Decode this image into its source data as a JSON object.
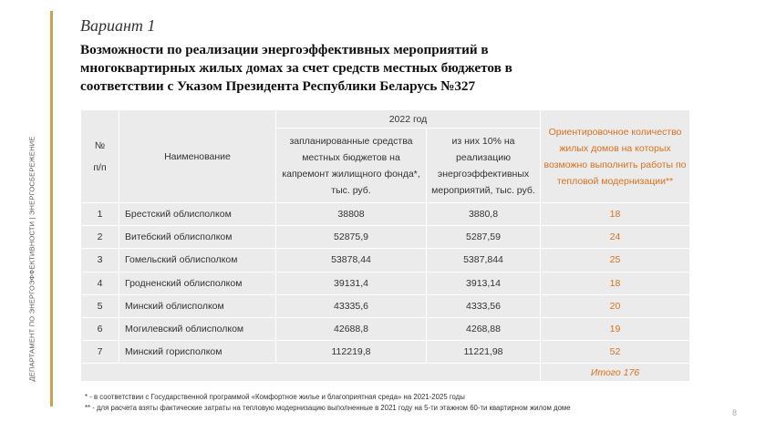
{
  "side_label": "ДЕПАРТАМЕНТ ПО ЭНЕРГОЭФФЕКТИВНОСТИ | ЭНЕРГОСБЕРЕЖЕНИЕ",
  "variant": "Вариант 1",
  "title_lines": [
    "Возможности по реализации энергоэффективных мероприятий в",
    "многоквартирных жилых домах за счет средств местных бюджетов в",
    "соответствии с Указом Президента Республики Беларусь №327"
  ],
  "table": {
    "header": {
      "num": "№ п/п",
      "name": "Наименование",
      "year": "2022 год",
      "planned": "запланированные средства местных бюджетов на капремонт жилищного фонда*, тыс. руб.",
      "ten_percent": "из них 10% на реализацию энергоэффективных мероприятий, тыс. руб.",
      "estimate": "Ориентировочное количество жилых домов на которых возможно выполнить работы по тепловой модернизации**"
    },
    "rows": [
      {
        "num": "1",
        "name": "Брестский облисполком",
        "planned": "38808",
        "ten": "3880,8",
        "houses": "18"
      },
      {
        "num": "2",
        "name": "Витебский облисполком",
        "planned": "52875,9",
        "ten": "5287,59",
        "houses": "24"
      },
      {
        "num": "3",
        "name": "Гомельский облисполком",
        "planned": "53878,44",
        "ten": "5387,844",
        "houses": "25"
      },
      {
        "num": "4",
        "name": "Гродненский облисполком",
        "planned": "39131,4",
        "ten": "3913,14",
        "houses": "18"
      },
      {
        "num": "5",
        "name": "Минский облисполком",
        "planned": "43335,6",
        "ten": "4333,56",
        "houses": "20"
      },
      {
        "num": "6",
        "name": "Могилевский облисполком",
        "planned": "42688,8",
        "ten": "4268,88",
        "houses": "19"
      },
      {
        "num": "7",
        "name": "Минский горисполком",
        "planned": "112219,8",
        "ten": "11221,98",
        "houses": "52"
      }
    ],
    "total": "Итого 176"
  },
  "footnotes": [
    "* - в  соответствии с Государственной программой «Комфортное жилье и благоприятная среда» на 2021-2025 годы",
    "** - для расчета взяты фактические затраты на тепловую модернизацию выполненные в 2021 году на 5-ти этажном 60-ти квартирном жилом доме"
  ],
  "page_number": "8",
  "colors": {
    "accent_bar": "#c9a44b",
    "estimate_text": "#d9711f",
    "table_bg": "#ebebeb"
  }
}
